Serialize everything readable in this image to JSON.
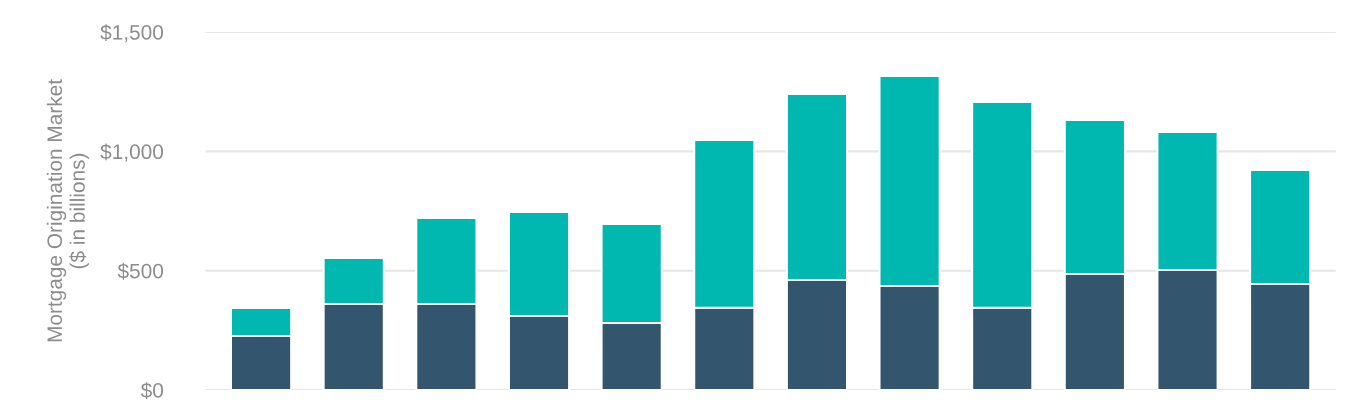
{
  "chart_data": {
    "type": "bar",
    "stacked": true,
    "ylabel": "Mortgage Origination Market\n($ in billions)",
    "categories": [
      null,
      null,
      null,
      null,
      null,
      null,
      null,
      null,
      null,
      null,
      null,
      null
    ],
    "series": [
      {
        "color": "#34556e",
        "values": [
          226,
          360,
          360,
          310,
          281,
          344,
          461,
          436,
          344,
          486,
          503,
          444
        ]
      },
      {
        "color": "#00b8b0",
        "values": [
          118,
          193,
          361,
          436,
          415,
          704,
          779,
          880,
          863,
          645,
          578,
          478
        ]
      }
    ],
    "ylim": [
      0,
      1500
    ],
    "yticks": [
      {
        "value": 0,
        "label": "$0"
      },
      {
        "value": 500,
        "label": "$500"
      },
      {
        "value": 1000,
        "label": "$1,000"
      },
      {
        "value": 1500,
        "label": "$1,500"
      }
    ],
    "grid": "y"
  }
}
